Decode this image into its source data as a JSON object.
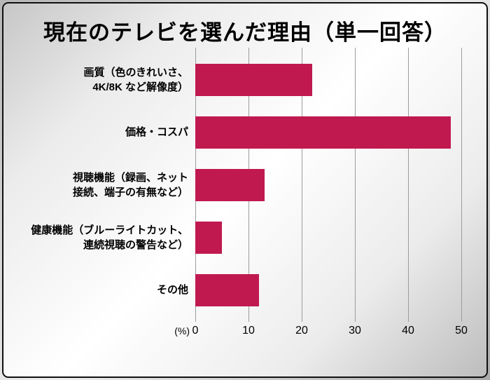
{
  "title": "現在のテレビを選んだ理由（単一回答）",
  "chart_data": {
    "type": "bar",
    "orientation": "horizontal",
    "title": "現在のテレビを選んだ理由（単一回答）",
    "categories": [
      "画質（色のきれいさ、\n4K/8K など解像度）",
      "価格・コスパ",
      "視聴機能（録画、ネット\n接続、端子の有無など）",
      "健康機能（ブルーライトカット、\n連続視聴の警告など）",
      "その他"
    ],
    "values": [
      22,
      48,
      13,
      5,
      12
    ],
    "xlim": [
      0,
      50
    ],
    "x_ticks": [
      0,
      10,
      20,
      30,
      40,
      50
    ],
    "x_unit_label": "(%)",
    "bar_color": "#c01950",
    "grid": true,
    "legend": "none"
  }
}
